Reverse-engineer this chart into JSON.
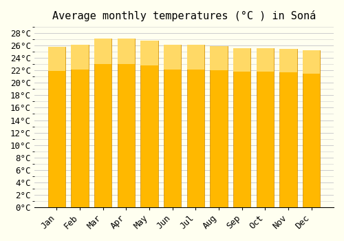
{
  "title": "Average monthly temperatures (°C ) in Soná",
  "months": [
    "Jan",
    "Feb",
    "Mar",
    "Apr",
    "May",
    "Jun",
    "Jul",
    "Aug",
    "Sep",
    "Oct",
    "Nov",
    "Dec"
  ],
  "values": [
    25.8,
    26.1,
    27.1,
    27.1,
    26.8,
    26.1,
    26.1,
    25.9,
    25.6,
    25.6,
    25.5,
    25.3
  ],
  "bar_color_top": "#FFA500",
  "bar_color_bottom": "#FFD700",
  "bar_edge_color": "#E8960A",
  "background_color": "#FFFFF0",
  "grid_color": "#CCCCCC",
  "ylim": [
    0,
    29
  ],
  "ytick_step": 2,
  "title_fontsize": 11,
  "tick_fontsize": 9
}
